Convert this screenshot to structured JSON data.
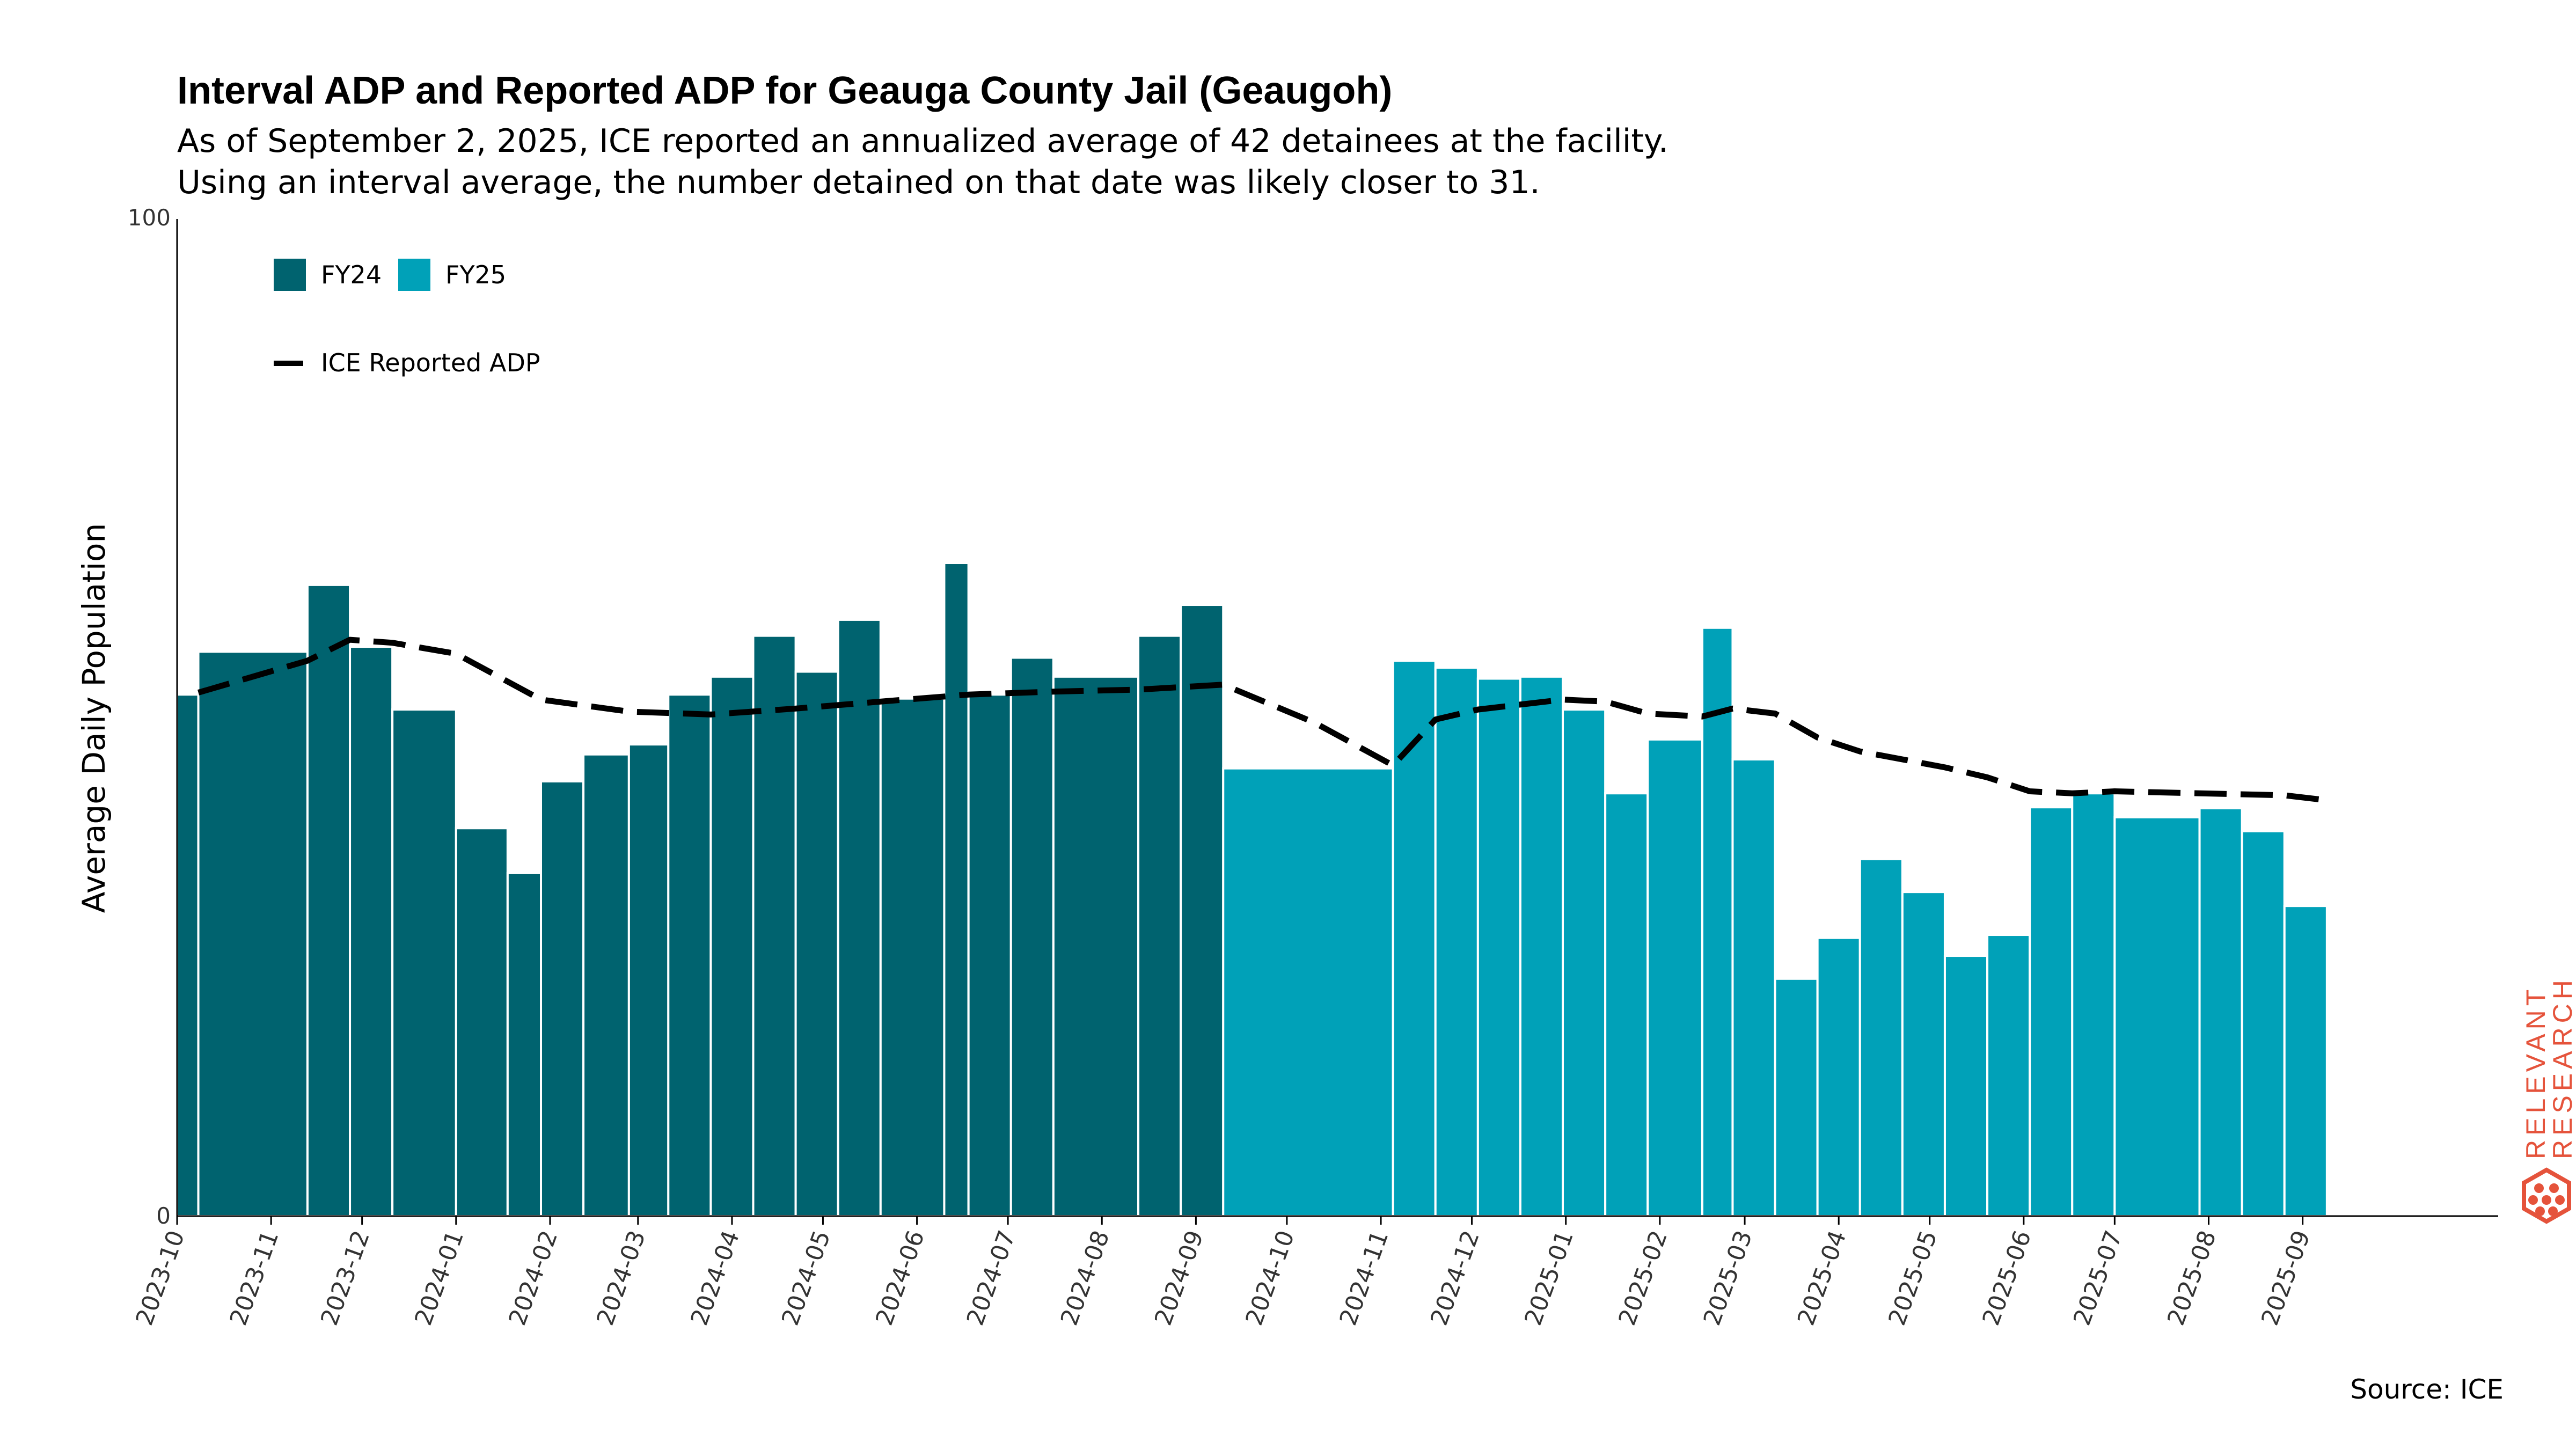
{
  "title": "Interval ADP and Reported ADP for Geauga County Jail (Geaugoh)",
  "subtitle_lines": [
    "As of September 2, 2025, ICE reported an annualized average of 42 detainees at the facility.",
    "Using an interval average, the number detained on that date was likely closer to 31."
  ],
  "source": "Source: ICE",
  "logo_text": [
    "RELEVANT",
    "RESEARCH"
  ],
  "colors": {
    "fy24": "#00636f",
    "fy25": "#00a1b8",
    "reported_line": "#000000",
    "logo": "#e5533b"
  },
  "chart_data": {
    "type": "bar",
    "ylabel": "Average Daily Population",
    "xlabel": "",
    "ylim": [
      0,
      100
    ],
    "yticks": [
      0,
      100
    ],
    "x_ticks": [
      "2023-10",
      "2023-11",
      "2023-12",
      "2024-01",
      "2024-02",
      "2024-03",
      "2024-04",
      "2024-05",
      "2024-06",
      "2024-07",
      "2024-08",
      "2024-09",
      "2024-10",
      "2024-11",
      "2024-12",
      "2025-01",
      "2025-02",
      "2025-03",
      "2025-04",
      "2025-05",
      "2025-06",
      "2025-07",
      "2025-08",
      "2025-09"
    ],
    "legend": {
      "placement": "top-left",
      "items": [
        "FY24",
        "FY25",
        "ICE Reported ADP"
      ]
    },
    "grid": false,
    "series": [
      {
        "name": "FY24",
        "bars": [
          {
            "start": "2023-10-01",
            "end": "2023-10-08",
            "value": 52.3
          },
          {
            "start": "2023-10-08",
            "end": "2023-11-13",
            "value": 56.6
          },
          {
            "start": "2023-11-13",
            "end": "2023-11-27",
            "value": 63.3
          },
          {
            "start": "2023-11-27",
            "end": "2023-12-11",
            "value": 57.1
          },
          {
            "start": "2023-12-11",
            "end": "2024-01-01",
            "value": 50.8
          },
          {
            "start": "2024-01-01",
            "end": "2024-01-18",
            "value": 38.9
          },
          {
            "start": "2024-01-18",
            "end": "2024-01-29",
            "value": 34.4
          },
          {
            "start": "2024-01-29",
            "end": "2024-02-12",
            "value": 43.6
          },
          {
            "start": "2024-02-12",
            "end": "2024-02-27",
            "value": 46.3
          },
          {
            "start": "2024-02-27",
            "end": "2024-03-11",
            "value": 47.3
          },
          {
            "start": "2024-03-11",
            "end": "2024-03-25",
            "value": 52.3
          },
          {
            "start": "2024-03-25",
            "end": "2024-04-08",
            "value": 54.1
          },
          {
            "start": "2024-04-08",
            "end": "2024-04-22",
            "value": 58.2
          },
          {
            "start": "2024-04-22",
            "end": "2024-05-06",
            "value": 54.6
          },
          {
            "start": "2024-05-06",
            "end": "2024-05-20",
            "value": 59.8
          },
          {
            "start": "2024-05-20",
            "end": "2024-06-10",
            "value": 51.9
          },
          {
            "start": "2024-06-10",
            "end": "2024-06-18",
            "value": 65.5
          },
          {
            "start": "2024-06-18",
            "end": "2024-07-02",
            "value": 52.3
          },
          {
            "start": "2024-07-02",
            "end": "2024-07-16",
            "value": 56.0
          },
          {
            "start": "2024-07-16",
            "end": "2024-08-13",
            "value": 54.1
          },
          {
            "start": "2024-08-13",
            "end": "2024-08-27",
            "value": 58.2
          },
          {
            "start": "2024-08-27",
            "end": "2024-09-10",
            "value": 61.3
          }
        ]
      },
      {
        "name": "FY25",
        "bars": [
          {
            "start": "2024-09-10",
            "end": "2024-11-05",
            "value": 44.9
          },
          {
            "start": "2024-11-05",
            "end": "2024-11-19",
            "value": 55.7
          },
          {
            "start": "2024-11-19",
            "end": "2024-12-03",
            "value": 55.0
          },
          {
            "start": "2024-12-03",
            "end": "2024-12-17",
            "value": 53.9
          },
          {
            "start": "2024-12-17",
            "end": "2024-12-31",
            "value": 54.1
          },
          {
            "start": "2024-12-31",
            "end": "2025-01-14",
            "value": 50.8
          },
          {
            "start": "2025-01-14",
            "end": "2025-01-28",
            "value": 42.4
          },
          {
            "start": "2025-01-28",
            "end": "2025-02-15",
            "value": 47.8
          },
          {
            "start": "2025-02-15",
            "end": "2025-02-25",
            "value": 59.0
          },
          {
            "start": "2025-02-25",
            "end": "2025-03-11",
            "value": 45.8
          },
          {
            "start": "2025-03-11",
            "end": "2025-03-25",
            "value": 23.8
          },
          {
            "start": "2025-03-25",
            "end": "2025-04-08",
            "value": 27.9
          },
          {
            "start": "2025-04-08",
            "end": "2025-04-22",
            "value": 35.8
          },
          {
            "start": "2025-04-22",
            "end": "2025-05-06",
            "value": 32.5
          },
          {
            "start": "2025-05-06",
            "end": "2025-05-20",
            "value": 26.1
          },
          {
            "start": "2025-05-20",
            "end": "2025-06-03",
            "value": 28.2
          },
          {
            "start": "2025-06-03",
            "end": "2025-06-17",
            "value": 41.0
          },
          {
            "start": "2025-06-17",
            "end": "2025-07-01",
            "value": 42.4
          },
          {
            "start": "2025-07-01",
            "end": "2025-07-29",
            "value": 40.0
          },
          {
            "start": "2025-07-29",
            "end": "2025-08-12",
            "value": 40.9
          },
          {
            "start": "2025-08-12",
            "end": "2025-08-26",
            "value": 38.6
          },
          {
            "start": "2025-08-26",
            "end": "2025-09-09",
            "value": 31.1
          }
        ]
      }
    ],
    "line": {
      "name": "ICE Reported ADP",
      "points": [
        {
          "date": "2023-10-08",
          "value": 52.5
        },
        {
          "date": "2023-11-13",
          "value": 55.7
        },
        {
          "date": "2023-11-27",
          "value": 57.8
        },
        {
          "date": "2023-12-11",
          "value": 57.5
        },
        {
          "date": "2024-01-01",
          "value": 56.4
        },
        {
          "date": "2024-01-29",
          "value": 51.8
        },
        {
          "date": "2024-02-27",
          "value": 50.6
        },
        {
          "date": "2024-03-25",
          "value": 50.3
        },
        {
          "date": "2024-04-22",
          "value": 50.9
        },
        {
          "date": "2024-05-20",
          "value": 51.6
        },
        {
          "date": "2024-06-18",
          "value": 52.3
        },
        {
          "date": "2024-07-16",
          "value": 52.6
        },
        {
          "date": "2024-08-13",
          "value": 52.8
        },
        {
          "date": "2024-09-10",
          "value": 53.3
        },
        {
          "date": "2024-10-10",
          "value": 49.5
        },
        {
          "date": "2024-11-05",
          "value": 45.2
        },
        {
          "date": "2024-11-19",
          "value": 49.8
        },
        {
          "date": "2024-12-03",
          "value": 50.8
        },
        {
          "date": "2024-12-31",
          "value": 51.8
        },
        {
          "date": "2025-01-14",
          "value": 51.6
        },
        {
          "date": "2025-01-28",
          "value": 50.4
        },
        {
          "date": "2025-02-15",
          "value": 50.1
        },
        {
          "date": "2025-02-25",
          "value": 50.9
        },
        {
          "date": "2025-03-11",
          "value": 50.4
        },
        {
          "date": "2025-03-25",
          "value": 48.0
        },
        {
          "date": "2025-04-08",
          "value": 46.6
        },
        {
          "date": "2025-05-06",
          "value": 45.0
        },
        {
          "date": "2025-05-20",
          "value": 44.0
        },
        {
          "date": "2025-06-03",
          "value": 42.6
        },
        {
          "date": "2025-06-17",
          "value": 42.4
        },
        {
          "date": "2025-07-01",
          "value": 42.6
        },
        {
          "date": "2025-07-29",
          "value": 42.4
        },
        {
          "date": "2025-08-26",
          "value": 42.2
        },
        {
          "date": "2025-09-09",
          "value": 41.7
        }
      ]
    }
  }
}
